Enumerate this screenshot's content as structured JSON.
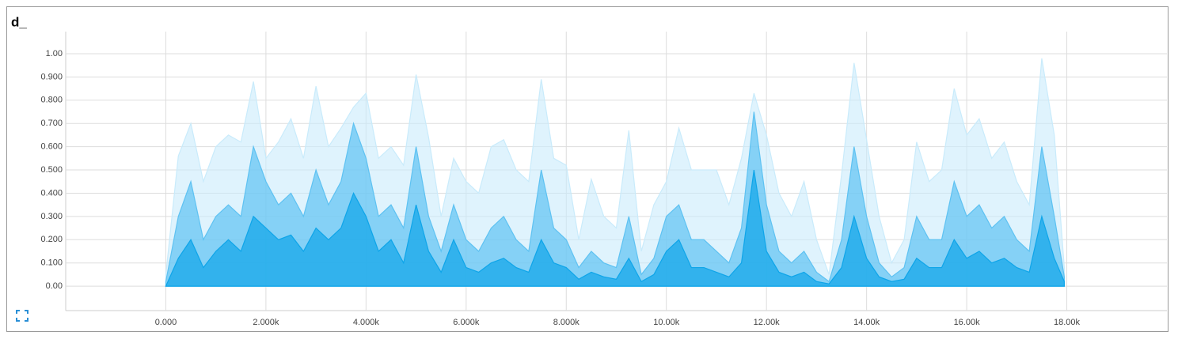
{
  "chart_data": {
    "type": "area",
    "title": "d_",
    "x": [
      0,
      250,
      500,
      750,
      1000,
      1250,
      1500,
      1750,
      2000,
      2250,
      2500,
      2750,
      3000,
      3250,
      3500,
      3750,
      4000,
      4250,
      4500,
      4750,
      5000,
      5250,
      5500,
      5750,
      6000,
      6250,
      6500,
      6750,
      7000,
      7250,
      7500,
      7750,
      8000,
      8250,
      8500,
      8750,
      9000,
      9250,
      9500,
      9750,
      10000,
      10250,
      10500,
      10750,
      11000,
      11250,
      11500,
      11750,
      12000,
      12250,
      12500,
      12750,
      13000,
      13250,
      13500,
      13750,
      14000,
      14250,
      14500,
      14750,
      15000,
      15250,
      15500,
      15750,
      16000,
      16250,
      16500,
      16750,
      17000,
      17250,
      17500,
      17750,
      17950
    ],
    "series": [
      {
        "color": "#c9ebfb",
        "values": [
          0.05,
          0.56,
          0.7,
          0.45,
          0.6,
          0.65,
          0.62,
          0.88,
          0.55,
          0.62,
          0.72,
          0.55,
          0.86,
          0.6,
          0.68,
          0.77,
          0.83,
          0.55,
          0.6,
          0.52,
          0.91,
          0.64,
          0.3,
          0.55,
          0.45,
          0.4,
          0.6,
          0.63,
          0.5,
          0.45,
          0.89,
          0.55,
          0.52,
          0.2,
          0.46,
          0.3,
          0.25,
          0.67,
          0.15,
          0.35,
          0.45,
          0.68,
          0.5,
          0.5,
          0.5,
          0.35,
          0.55,
          0.83,
          0.65,
          0.4,
          0.3,
          0.45,
          0.2,
          0.05,
          0.48,
          0.96,
          0.63,
          0.3,
          0.1,
          0.2,
          0.62,
          0.45,
          0.5,
          0.85,
          0.65,
          0.72,
          0.55,
          0.62,
          0.45,
          0.35,
          0.98,
          0.65,
          0.08
        ]
      },
      {
        "color": "#5ec2f2",
        "values": [
          0.02,
          0.3,
          0.45,
          0.2,
          0.3,
          0.35,
          0.3,
          0.6,
          0.45,
          0.35,
          0.4,
          0.3,
          0.5,
          0.35,
          0.45,
          0.7,
          0.55,
          0.3,
          0.35,
          0.25,
          0.6,
          0.3,
          0.15,
          0.35,
          0.2,
          0.15,
          0.25,
          0.3,
          0.2,
          0.15,
          0.5,
          0.25,
          0.2,
          0.08,
          0.15,
          0.1,
          0.08,
          0.3,
          0.05,
          0.12,
          0.3,
          0.35,
          0.2,
          0.2,
          0.15,
          0.1,
          0.25,
          0.75,
          0.35,
          0.15,
          0.1,
          0.15,
          0.06,
          0.02,
          0.2,
          0.6,
          0.3,
          0.1,
          0.04,
          0.08,
          0.3,
          0.2,
          0.2,
          0.45,
          0.3,
          0.35,
          0.25,
          0.3,
          0.2,
          0.15,
          0.6,
          0.3,
          0.04
        ]
      },
      {
        "color": "#0ea5e9",
        "values": [
          0.0,
          0.12,
          0.2,
          0.08,
          0.15,
          0.2,
          0.15,
          0.3,
          0.25,
          0.2,
          0.22,
          0.15,
          0.25,
          0.2,
          0.25,
          0.4,
          0.3,
          0.15,
          0.2,
          0.1,
          0.35,
          0.15,
          0.06,
          0.2,
          0.08,
          0.06,
          0.1,
          0.12,
          0.08,
          0.06,
          0.2,
          0.1,
          0.08,
          0.03,
          0.06,
          0.04,
          0.03,
          0.12,
          0.02,
          0.05,
          0.15,
          0.2,
          0.08,
          0.08,
          0.06,
          0.04,
          0.1,
          0.5,
          0.15,
          0.06,
          0.04,
          0.06,
          0.02,
          0.01,
          0.08,
          0.3,
          0.12,
          0.04,
          0.02,
          0.03,
          0.12,
          0.08,
          0.08,
          0.2,
          0.12,
          0.15,
          0.1,
          0.12,
          0.08,
          0.06,
          0.3,
          0.12,
          0.02
        ]
      }
    ],
    "xlim": [
      -2000,
      20000
    ],
    "xticks": [
      {
        "value": 0,
        "label": "0.000"
      },
      {
        "value": 2000,
        "label": "2.000k"
      },
      {
        "value": 4000,
        "label": "4.000k"
      },
      {
        "value": 6000,
        "label": "6.000k"
      },
      {
        "value": 8000,
        "label": "8.000k"
      },
      {
        "value": 10000,
        "label": "10.00k"
      },
      {
        "value": 12000,
        "label": "12.00k"
      },
      {
        "value": 14000,
        "label": "14.00k"
      },
      {
        "value": 16000,
        "label": "16.00k"
      },
      {
        "value": 18000,
        "label": "18.00k"
      }
    ],
    "ylim": [
      -0.105,
      1.095
    ],
    "yticks": [
      {
        "value": 0,
        "label": "0.00"
      },
      {
        "value": 0.1,
        "label": "0.100"
      },
      {
        "value": 0.2,
        "label": "0.200"
      },
      {
        "value": 0.3,
        "label": "0.300"
      },
      {
        "value": 0.4,
        "label": "0.400"
      },
      {
        "value": 0.5,
        "label": "0.500"
      },
      {
        "value": 0.6,
        "label": "0.600"
      },
      {
        "value": 0.7,
        "label": "0.700"
      },
      {
        "value": 0.8,
        "label": "0.800"
      },
      {
        "value": 0.9,
        "label": "0.900"
      },
      {
        "value": 1,
        "label": "1.00"
      }
    ],
    "grid": true
  }
}
